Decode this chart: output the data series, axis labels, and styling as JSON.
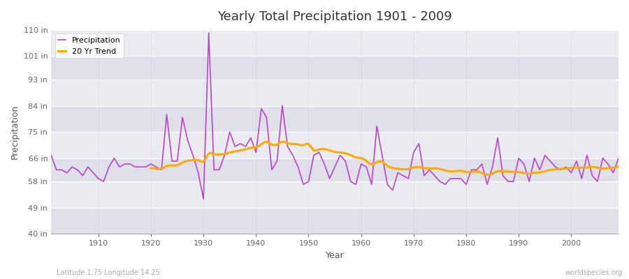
{
  "title": "Yearly Total Precipitation 1901 - 2009",
  "xlabel": "Year",
  "ylabel": "Precipitation",
  "subtitle": "Latitude 1.75 Longitude 14.25",
  "watermark": "worldspecies.org",
  "fig_bg_color": "#ffffff",
  "plot_bg_color": "#e8e8ee",
  "band_color_a": "#e0e0ea",
  "band_color_b": "#ebebf2",
  "precip_color": "#bb44cc",
  "trend_color": "#ffaa00",
  "grid_color": "#ccccdd",
  "ylim": [
    40,
    110
  ],
  "yticks": [
    40,
    49,
    58,
    66,
    75,
    84,
    93,
    101,
    110
  ],
  "ytick_labels": [
    "40 in",
    "49 in",
    "58 in",
    "66 in",
    "75 in",
    "84 in",
    "93 in",
    "101 in",
    "110 in"
  ],
  "xticks": [
    1910,
    1920,
    1930,
    1940,
    1950,
    1960,
    1970,
    1980,
    1990,
    2000
  ],
  "xlim": [
    1901,
    2009
  ],
  "years": [
    1901,
    1902,
    1903,
    1904,
    1905,
    1906,
    1907,
    1908,
    1909,
    1910,
    1911,
    1912,
    1913,
    1914,
    1915,
    1916,
    1917,
    1918,
    1919,
    1920,
    1921,
    1922,
    1923,
    1924,
    1925,
    1926,
    1927,
    1928,
    1929,
    1930,
    1931,
    1932,
    1933,
    1934,
    1935,
    1936,
    1937,
    1938,
    1939,
    1940,
    1941,
    1942,
    1943,
    1944,
    1945,
    1946,
    1947,
    1948,
    1949,
    1950,
    1951,
    1952,
    1953,
    1954,
    1955,
    1956,
    1957,
    1958,
    1959,
    1960,
    1961,
    1962,
    1963,
    1964,
    1965,
    1966,
    1967,
    1968,
    1969,
    1970,
    1971,
    1972,
    1973,
    1974,
    1975,
    1976,
    1977,
    1978,
    1979,
    1980,
    1981,
    1982,
    1983,
    1984,
    1985,
    1986,
    1987,
    1988,
    1989,
    1990,
    1991,
    1992,
    1993,
    1994,
    1995,
    1996,
    1997,
    1998,
    1999,
    2000,
    2001,
    2002,
    2003,
    2004,
    2005,
    2006,
    2007,
    2008,
    2009
  ],
  "precip": [
    67,
    62,
    62,
    61,
    63,
    62,
    60,
    63,
    61,
    59,
    58,
    63,
    66,
    63,
    64,
    64,
    63,
    63,
    63,
    64,
    63,
    62,
    81,
    65,
    65,
    80,
    72,
    67,
    61,
    52,
    109,
    62,
    62,
    67,
    75,
    70,
    71,
    70,
    73,
    68,
    83,
    80,
    62,
    65,
    84,
    70,
    67,
    63,
    57,
    58,
    67,
    68,
    64,
    59,
    63,
    67,
    65,
    58,
    57,
    64,
    63,
    57,
    77,
    67,
    57,
    55,
    61,
    60,
    59,
    68,
    71,
    60,
    62,
    60,
    58,
    57,
    59,
    59,
    59,
    57,
    62,
    62,
    64,
    57,
    63,
    73,
    60,
    58,
    58,
    66,
    64,
    58,
    66,
    62,
    67,
    65,
    63,
    62,
    63,
    61,
    65,
    59,
    67,
    60,
    58,
    66,
    64,
    61,
    66
  ],
  "trend_window": 20,
  "title_fontsize": 13,
  "axis_label_fontsize": 9,
  "tick_fontsize": 8,
  "legend_fontsize": 8
}
